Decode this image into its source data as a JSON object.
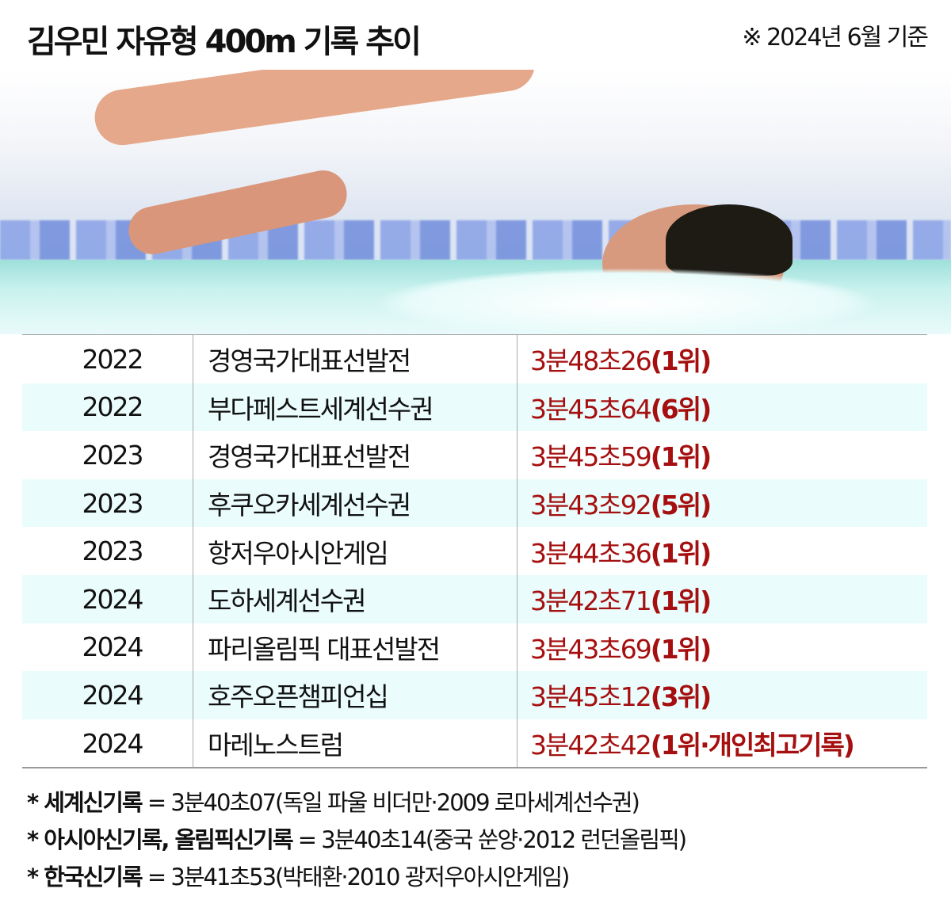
{
  "title": "김우민 자유형 400m 기록 추이",
  "basis": "※ 2024년 6월 기준",
  "photo": {
    "description_icon": "swimmer-photo"
  },
  "colors": {
    "record_red": "#a50f0f",
    "alt_row": "#eafcfc"
  },
  "records": [
    {
      "year": "2022",
      "event": "경영국가대표선발전",
      "time": "3분48초26",
      "rank": "(1위)"
    },
    {
      "year": "2022",
      "event": "부다페스트세계선수권",
      "time": "3분45초64",
      "rank": "(6위)"
    },
    {
      "year": "2023",
      "event": "경영국가대표선발전",
      "time": "3분45초59",
      "rank": "(1위)"
    },
    {
      "year": "2023",
      "event": "후쿠오카세계선수권",
      "time": "3분43초92",
      "rank": "(5위)"
    },
    {
      "year": "2023",
      "event": "항저우아시안게임",
      "time": "3분44초36",
      "rank": "(1위)"
    },
    {
      "year": "2024",
      "event": "도하세계선수권",
      "time": "3분42초71",
      "rank": "(1위)"
    },
    {
      "year": "2024",
      "event": "파리올림픽 대표선발전",
      "time": "3분43초69",
      "rank": "(1위)"
    },
    {
      "year": "2024",
      "event": "호주오픈챔피언십",
      "time": "3분45초12",
      "rank": "(3위)"
    },
    {
      "year": "2024",
      "event": "마레노스트럼",
      "time": "3분42초42",
      "rank": "(1위·개인최고기록)"
    }
  ],
  "notes": [
    {
      "label": "* 세계신기록",
      "value": " = 3분40초07(독일 파울 비더만·2009 로마세계선수권)"
    },
    {
      "label": "* 아시아신기록, 올림픽신기록",
      "value": " = 3분40초14(중국 쑨양·2012 런던올림픽)"
    },
    {
      "label": "* 한국신기록",
      "value": " = 3분41초53(박태환·2010 광저우아시안게임)"
    }
  ]
}
